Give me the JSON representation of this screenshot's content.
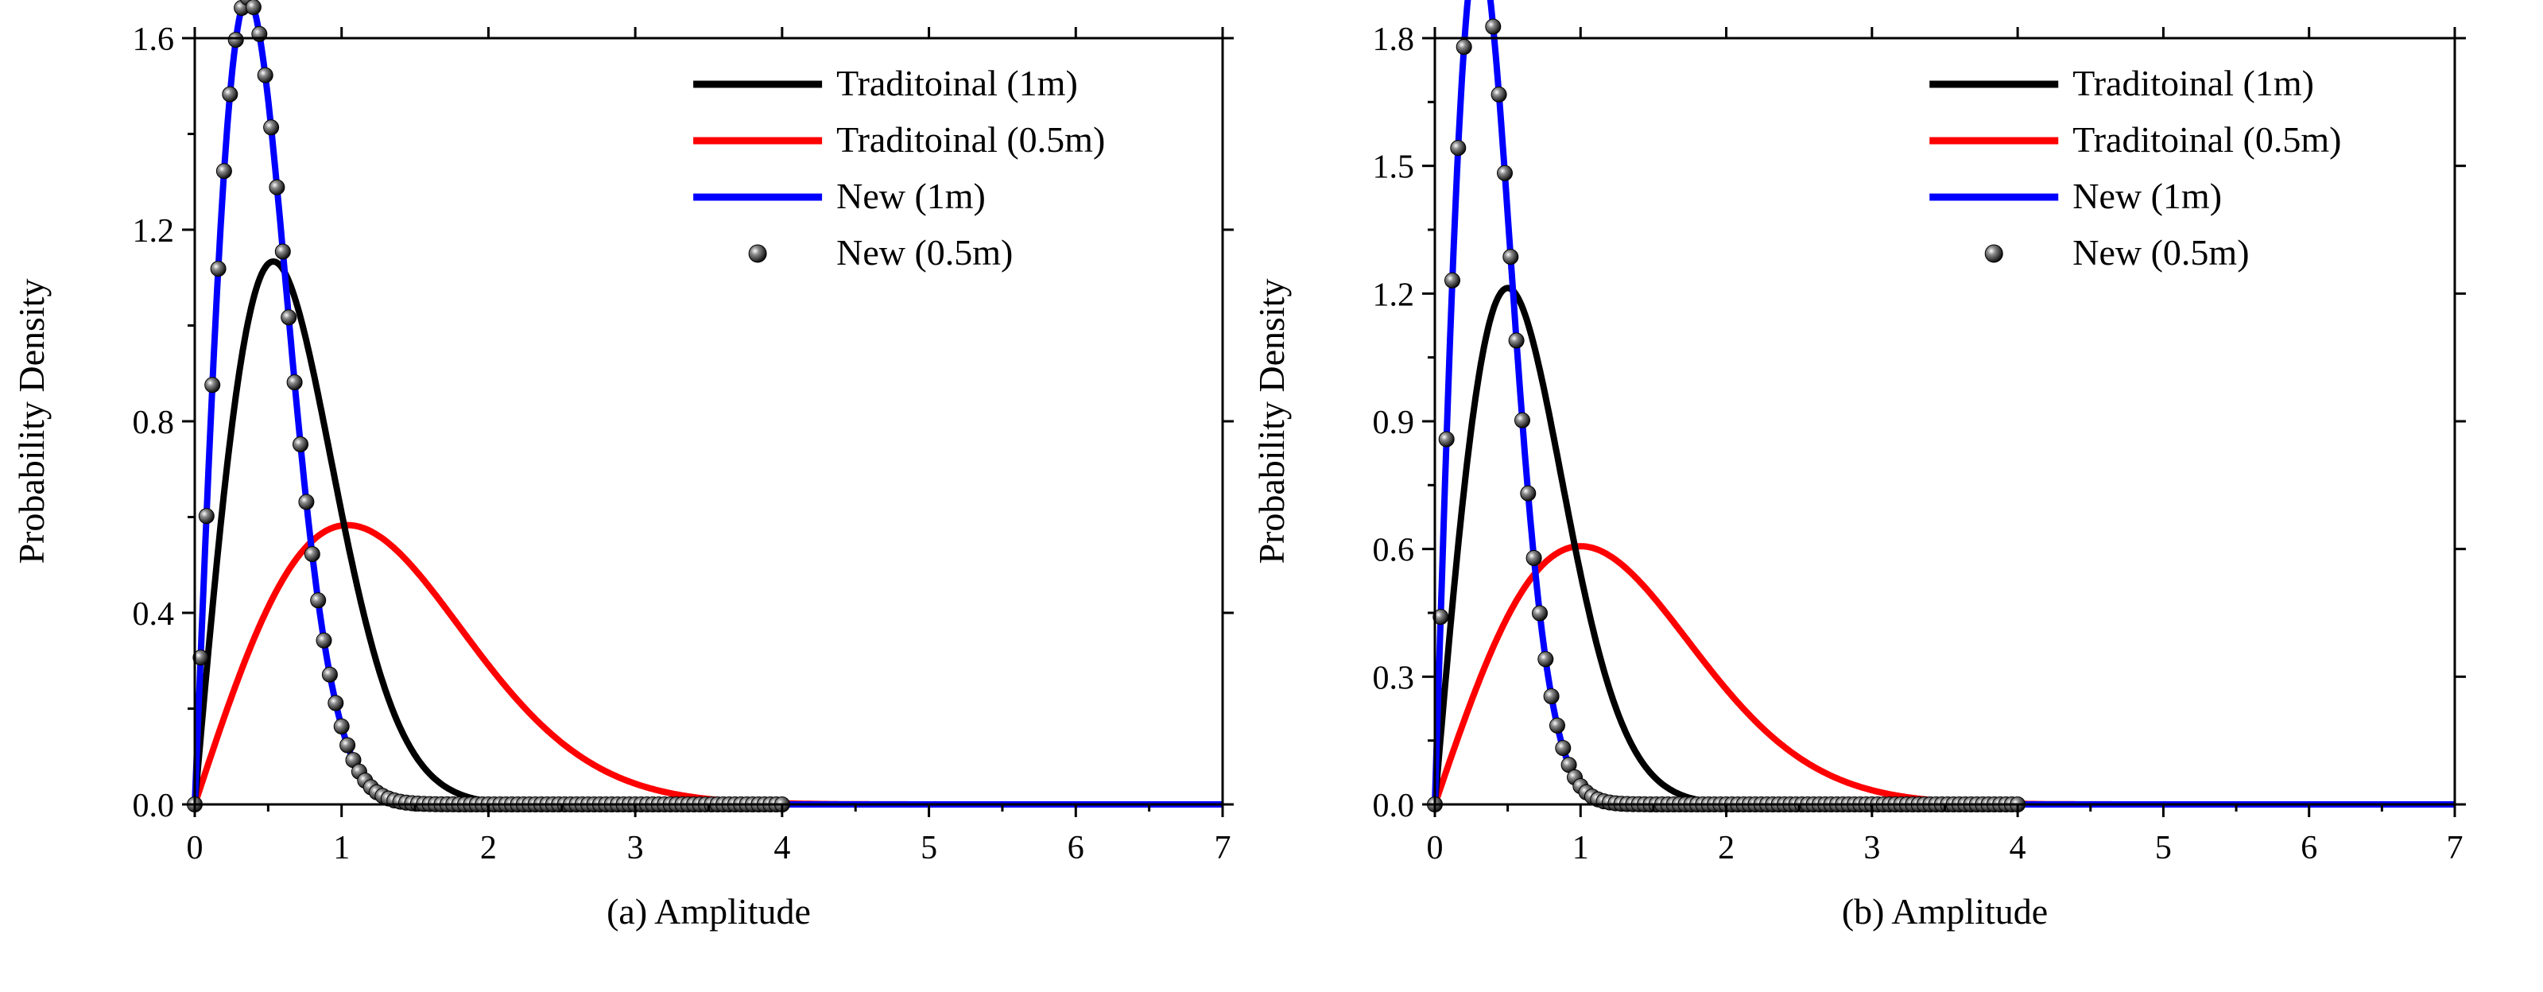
{
  "chart_data": [
    {
      "type": "line",
      "panel": "(a)",
      "xlabel": "(a) Amplitude",
      "ylabel": "Probability Density",
      "xlim": [
        0,
        7
      ],
      "ylim": [
        0,
        1.6
      ],
      "xticks": [
        0,
        1,
        2,
        3,
        4,
        5,
        6,
        7
      ],
      "xtick_labels": [
        "0",
        "1",
        "2",
        "3",
        "4",
        "5",
        "6",
        "7"
      ],
      "yticks": [
        0,
        0.4,
        0.8,
        1.2,
        1.6
      ],
      "ytick_labels": [
        "0.0",
        "0.4",
        "0.8",
        "1.2",
        "1.6"
      ],
      "legend_position": "top-right",
      "series": [
        {
          "name": "Traditoinal (1m)",
          "color": "#000000",
          "style": "line",
          "dist": "rayleigh",
          "sigma": 0.535
        },
        {
          "name": "Traditoinal (0.5m)",
          "color": "#ff0000",
          "style": "line",
          "dist": "rayleigh",
          "sigma": 1.04
        },
        {
          "name": "New (1m)",
          "color": "#0000ff",
          "style": "line",
          "dist": "rayleigh",
          "sigma": 0.36
        },
        {
          "name": "New (0.5m)",
          "color": "#222222",
          "style": "markers",
          "dist": "rayleigh",
          "sigma": 0.36,
          "x_max": 4.0
        }
      ]
    },
    {
      "type": "line",
      "panel": "(b)",
      "xlabel": "(b) Amplitude",
      "ylabel": "Probability Density",
      "xlim": [
        0,
        7
      ],
      "ylim": [
        0,
        1.8
      ],
      "xticks": [
        0,
        1,
        2,
        3,
        4,
        5,
        6,
        7
      ],
      "xtick_labels": [
        "0",
        "1",
        "2",
        "3",
        "4",
        "5",
        "6",
        "7"
      ],
      "yticks": [
        0,
        0.3,
        0.6,
        0.9,
        1.2,
        1.5,
        1.8
      ],
      "ytick_labels": [
        "0.0",
        "0.3",
        "0.6",
        "0.9",
        "1.2",
        "1.5",
        "1.8"
      ],
      "legend_position": "top-right",
      "series": [
        {
          "name": "Traditoinal (1m)",
          "color": "#000000",
          "style": "line",
          "dist": "rayleigh",
          "sigma": 0.5
        },
        {
          "name": "Traditoinal (0.5m)",
          "color": "#ff0000",
          "style": "line",
          "dist": "rayleigh",
          "sigma": 1.0
        },
        {
          "name": "New (1m)",
          "color": "#0000ff",
          "style": "line",
          "dist": "rayleigh",
          "sigma": 0.3
        },
        {
          "name": "New (0.5m)",
          "color": "#222222",
          "style": "markers",
          "dist": "rayleigh",
          "sigma": 0.3,
          "x_max": 4.0
        }
      ]
    }
  ]
}
